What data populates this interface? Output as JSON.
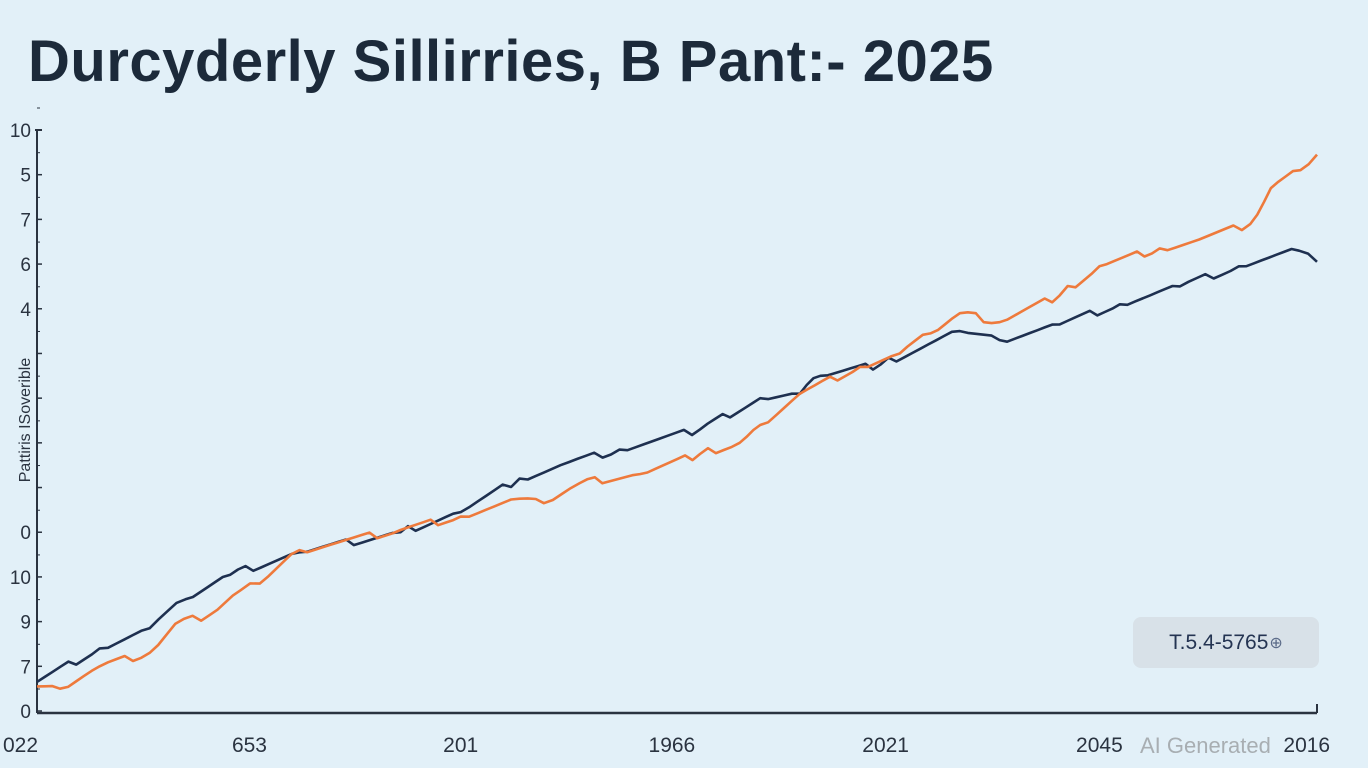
{
  "chart_data": {
    "type": "line",
    "title": "Durcyderly Sillirries, B Pant:- 2025",
    "xlabel": "",
    "ylabel": "Pattiris ISoverible",
    "x_tick_labels": [
      "022",
      "653",
      "201",
      "1966",
      "2021",
      "2045",
      "2016"
    ],
    "y_tick_labels": [
      "0",
      "7",
      "9",
      "10",
      "0",
      "",
      "",
      "",
      "",
      "4",
      "6",
      "7",
      "5",
      "10"
    ],
    "ylim": [
      0,
      13
    ],
    "xlim": [
      0,
      100
    ],
    "grid": false,
    "legend": "none",
    "series": [
      {
        "name": "navy",
        "color": "#1e3050",
        "x": [
          0,
          4.9,
          8.8,
          11.6,
          15.1,
          20.5,
          28.4,
          33.1,
          37.7,
          40.9,
          45.5,
          51.8,
          56.5,
          59.6,
          61.2,
          65.9,
          72.1,
          75.2,
          79.9,
          84.6,
          89.3,
          93.9,
          98.6,
          100
        ],
        "y": [
          0.65,
          1.4,
          1.85,
          2.5,
          3.05,
          3.55,
          4.0,
          4.45,
          5.2,
          5.5,
          5.85,
          6.3,
          7.0,
          7.1,
          7.5,
          7.75,
          8.5,
          8.3,
          8.65,
          9.1,
          9.5,
          9.95,
          10.3,
          10.05
        ]
      },
      {
        "name": "orange",
        "color": "#ee7a3c",
        "x": [
          0,
          1.8,
          4.9,
          8.8,
          10.8,
          13.5,
          15.9,
          17.4,
          20.5,
          28.4,
          33.1,
          37.7,
          39.6,
          42.4,
          47.1,
          51.8,
          54.9,
          56.5,
          59.6,
          64.3,
          67.4,
          69.8,
          72.1,
          75.2,
          79.9,
          83.0,
          87.7,
          90.8,
          94.8,
          96.4,
          98.7,
          100
        ],
        "y": [
          0.55,
          0.5,
          1.0,
          1.3,
          1.95,
          2.15,
          2.7,
          2.85,
          3.6,
          4.05,
          4.35,
          4.75,
          4.65,
          5.1,
          5.3,
          5.75,
          6.0,
          6.4,
          7.1,
          7.7,
          8.0,
          8.45,
          8.9,
          8.7,
          9.3,
          9.95,
          10.35,
          10.55,
          10.9,
          11.7,
          12.1,
          12.45
        ]
      }
    ],
    "annotation": "T.5.4-5765"
  },
  "badge": {
    "text": "T.5.4-5765",
    "icon": "globe-icon",
    "icon_glyph": "⊕"
  },
  "watermark": "AI Generated"
}
